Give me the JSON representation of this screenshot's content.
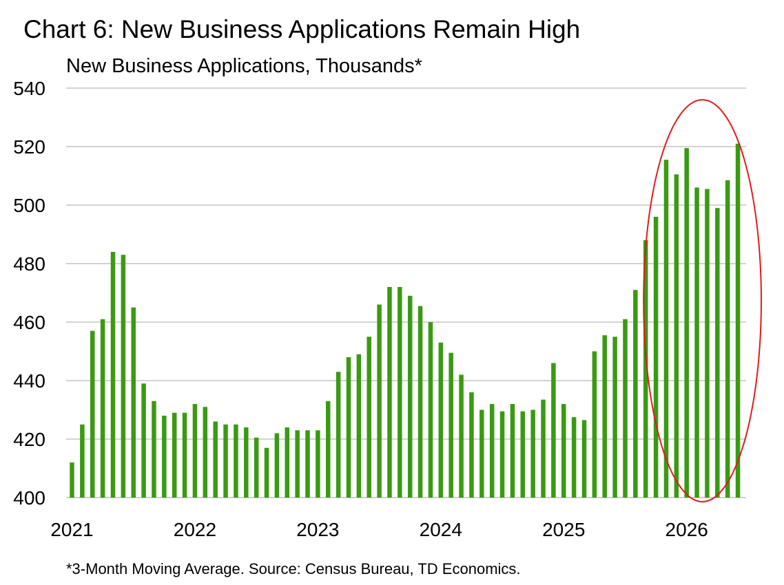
{
  "chart_data": {
    "type": "bar",
    "title": "Chart 6: New Business Applications Remain High",
    "subtitle": "New Business Applications, Thousands*",
    "footnote": "*3-Month Moving Average. Source: Census Bureau, TD Economics.",
    "xlabel": "",
    "ylabel": "",
    "ylim": [
      400,
      540
    ],
    "yticks": [
      "400",
      "420",
      "440",
      "460",
      "480",
      "500",
      "520",
      "540"
    ],
    "xticks": [
      {
        "label": "2021",
        "date": "2021-01"
      },
      {
        "label": "2022",
        "date": "2022-01"
      },
      {
        "label": "2023",
        "date": "2023-01"
      },
      {
        "label": "2024",
        "date": "2024-01"
      },
      {
        "label": "2025",
        "date": "2025-01"
      },
      {
        "label": "2026",
        "date": "2026-01"
      }
    ],
    "grid": true,
    "bar_color": "#3a9a12",
    "highlight": {
      "shape": "ellipse",
      "color": "#e01b1b",
      "from": "2025-09",
      "to": "2026-06"
    },
    "categories": [
      "2021-01",
      "2021-02",
      "2021-03",
      "2021-04",
      "2021-05",
      "2021-06",
      "2021-07",
      "2021-08",
      "2021-09",
      "2021-10",
      "2021-11",
      "2021-12",
      "2022-01",
      "2022-02",
      "2022-03",
      "2022-04",
      "2022-05",
      "2022-06",
      "2022-07",
      "2022-08",
      "2022-09",
      "2022-10",
      "2022-11",
      "2022-12",
      "2023-01",
      "2023-02",
      "2023-03",
      "2023-04",
      "2023-05",
      "2023-06",
      "2023-07",
      "2023-08",
      "2023-09",
      "2023-10",
      "2023-11",
      "2023-12",
      "2024-01",
      "2024-02",
      "2024-03",
      "2024-04",
      "2024-05",
      "2024-06",
      "2024-07",
      "2024-08",
      "2024-09",
      "2024-10",
      "2024-11",
      "2024-12",
      "2025-01",
      "2025-02",
      "2025-03",
      "2025-04",
      "2025-05",
      "2025-06",
      "2025-07",
      "2025-08",
      "2025-09",
      "2025-10",
      "2025-11",
      "2025-12",
      "2026-01",
      "2026-02",
      "2026-03",
      "2026-04",
      "2026-05",
      "2026-06"
    ],
    "values": [
      412,
      425,
      457,
      461,
      484,
      483,
      465,
      439,
      433,
      428,
      429,
      429,
      432,
      431,
      426,
      425,
      425,
      424,
      420.5,
      417,
      422,
      424,
      423,
      423,
      423,
      433,
      443,
      448,
      449,
      455,
      466,
      472,
      472,
      469,
      465.5,
      460,
      453,
      449.5,
      442,
      436,
      430,
      432,
      429.5,
      432,
      429.5,
      430,
      433.5,
      446,
      432,
      427.5,
      426.5,
      450,
      455.5,
      455,
      461,
      471,
      488,
      496,
      515.5,
      510.5,
      519.5,
      506,
      505.5,
      499,
      508.5,
      521
    ]
  }
}
